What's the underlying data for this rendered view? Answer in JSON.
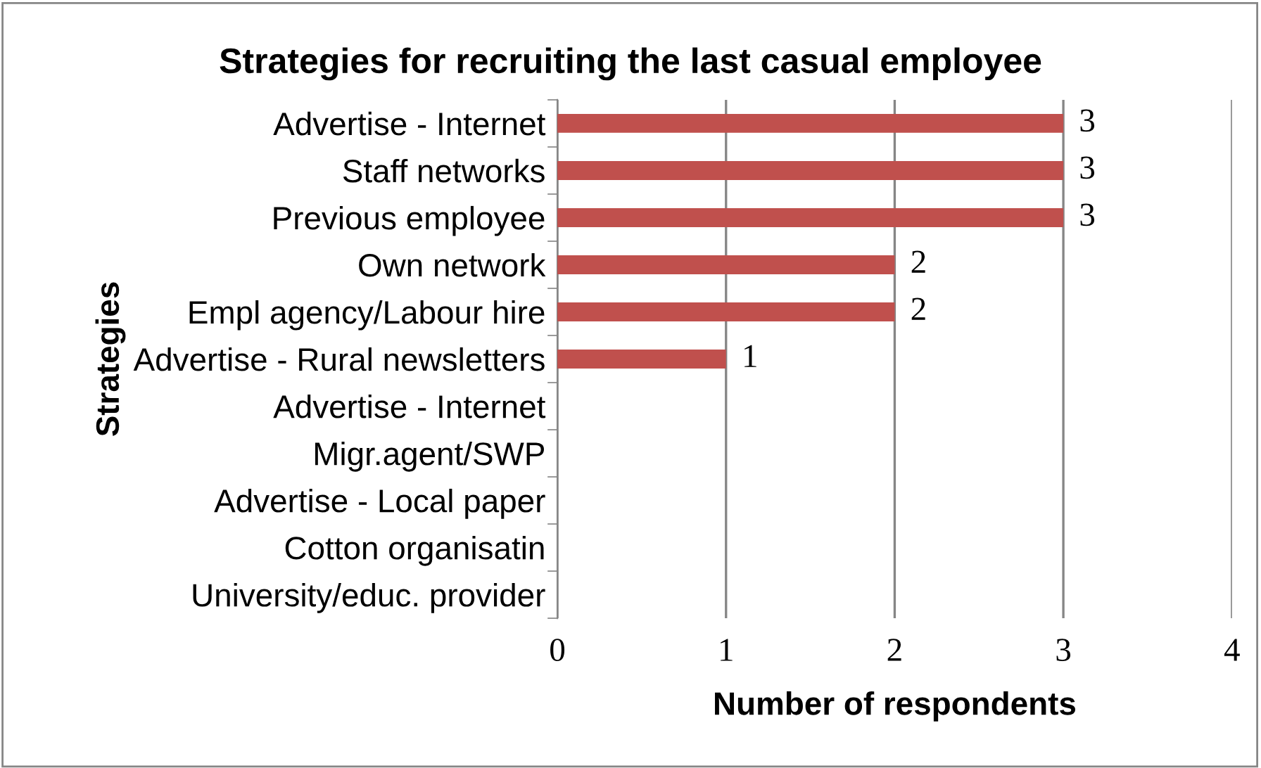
{
  "chart_data": {
    "type": "bar",
    "orientation": "horizontal",
    "title": "Strategies for recruiting the last casual employee",
    "xlabel": "Number of respondents",
    "ylabel": "Strategies",
    "categories": [
      "Advertise - Internet",
      "Staff networks",
      "Previous employee",
      "Own network",
      "Empl agency/Labour hire",
      "Advertise - Rural newsletters",
      "Advertise - Internet",
      "Migr.agent/SWP",
      "Advertise - Local paper",
      "Cotton organisatin",
      "University/educ. provider"
    ],
    "values": [
      3,
      3,
      3,
      2,
      2,
      1,
      0,
      0,
      0,
      0,
      0
    ],
    "value_labels": [
      "3",
      "3",
      "3",
      "2",
      "2",
      "1",
      null,
      null,
      null,
      null,
      null
    ],
    "color": "#c0504d",
    "xlim": [
      0,
      4
    ],
    "xticks": [
      0,
      1,
      2,
      3,
      4
    ],
    "grid": "x",
    "legend": false
  }
}
